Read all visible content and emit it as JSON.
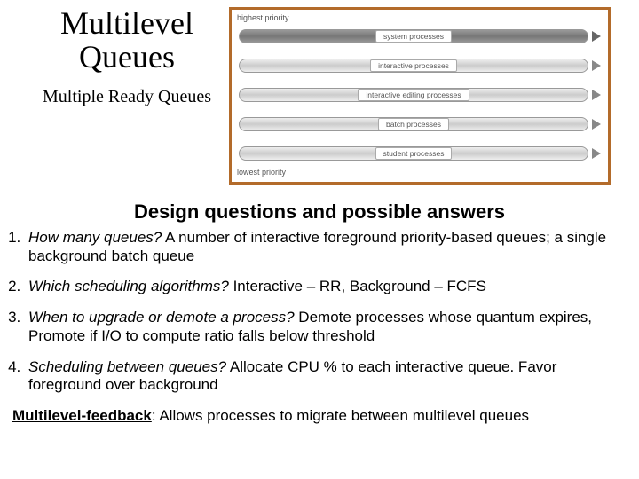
{
  "title": {
    "main": "Multilevel Queues",
    "sub": "Multiple Ready Queues"
  },
  "diagram": {
    "top_label": "highest priority",
    "bottom_label": "lowest priority",
    "border_color": "#b36b2a",
    "queues": [
      {
        "label": "system processes",
        "dark": true
      },
      {
        "label": "interactive processes",
        "dark": false
      },
      {
        "label": "interactive editing processes",
        "dark": false
      },
      {
        "label": "batch processes",
        "dark": false
      },
      {
        "label": "student processes",
        "dark": false
      }
    ]
  },
  "section_heading": "Design questions and possible answers",
  "questions": [
    {
      "lead": "How many queues?",
      "answer": " A number of interactive foreground priority-based queues; a single background batch queue"
    },
    {
      "lead": "Which scheduling algorithms?",
      "answer": " Interactive – RR, Background – FCFS"
    },
    {
      "lead": "When to upgrade or demote a process?",
      "answer": " Demote processes whose quantum expires, Promote if I/O to compute ratio falls below threshold"
    },
    {
      "lead": "Scheduling between queues?",
      "answer": " Allocate CPU % to each interactive queue. Favor foreground over background"
    }
  ],
  "footer": {
    "lead": "Multilevel-feedback",
    "rest": ": Allows processes to migrate between multilevel queues"
  }
}
